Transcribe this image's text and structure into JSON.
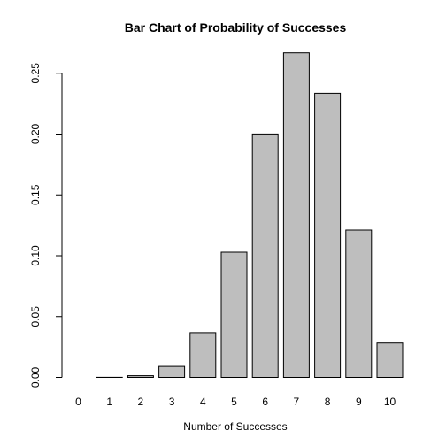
{
  "chart_data": {
    "type": "bar",
    "title": "Bar Chart of Probability of Successes",
    "xlabel": "Number of Successes",
    "ylabel": "",
    "categories": [
      "0",
      "1",
      "2",
      "3",
      "4",
      "5",
      "6",
      "7",
      "8",
      "9",
      "10"
    ],
    "values": [
      0.0,
      0.0001,
      0.0014,
      0.009,
      0.0368,
      0.1029,
      0.2001,
      0.2668,
      0.2335,
      0.1211,
      0.0282
    ],
    "ylim": [
      0,
      0.27
    ],
    "yticks": [
      0.0,
      0.05,
      0.1,
      0.15,
      0.2,
      0.25
    ],
    "ytick_labels": [
      "0.00",
      "0.05",
      "0.10",
      "0.15",
      "0.20",
      "0.25"
    ],
    "grid": false,
    "colors": {
      "bar_fill": "#bebebe",
      "bar_stroke": "#000000"
    }
  }
}
